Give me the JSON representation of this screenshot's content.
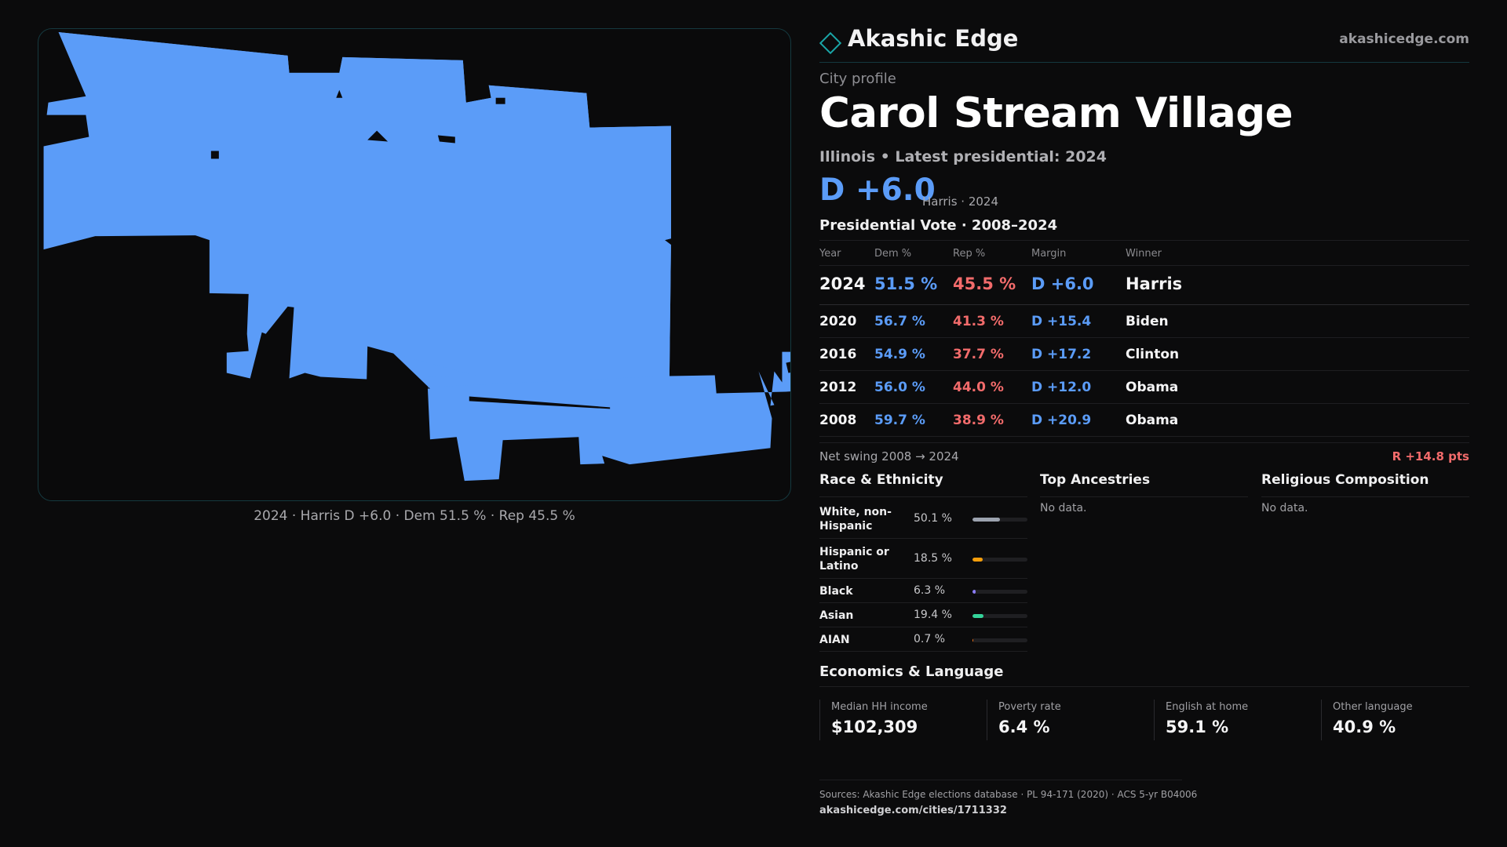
{
  "brand": {
    "name": "Akashic Edge",
    "site": "akashicedge.com",
    "accent": "#1aa6a8"
  },
  "profile": {
    "kicker": "City profile",
    "city": "Carol Stream Village",
    "subtitle": "Illinois • Latest presidential: 2024",
    "headline_margin": "D +6.0",
    "headline_note": "Harris · 2024"
  },
  "map": {
    "fill_color": "#5b9cf8",
    "caption": "2024 · Harris D +6.0 · Dem 51.5 % · Rep 45.5 %"
  },
  "vote": {
    "title": "Presidential Vote · 2008–2024",
    "headers": {
      "year": "Year",
      "dem": "Dem %",
      "rep": "Rep %",
      "margin": "Margin",
      "winner": "Winner"
    },
    "rows": [
      {
        "year": "2024",
        "dem": "51.5 %",
        "rep": "45.5 %",
        "margin": "D +6.0",
        "winner": "Harris"
      },
      {
        "year": "2020",
        "dem": "56.7 %",
        "rep": "41.3 %",
        "margin": "D +15.4",
        "winner": "Biden"
      },
      {
        "year": "2016",
        "dem": "54.9 %",
        "rep": "37.7 %",
        "margin": "D +17.2",
        "winner": "Clinton"
      },
      {
        "year": "2012",
        "dem": "56.0 %",
        "rep": "44.0 %",
        "margin": "D +12.0",
        "winner": "Obama"
      },
      {
        "year": "2008",
        "dem": "59.7 %",
        "rep": "38.9 %",
        "margin": "D +20.9",
        "winner": "Obama"
      }
    ],
    "swing_label": "Net swing 2008 → 2024",
    "swing_value": "R +14.8 pts"
  },
  "race": {
    "title": "Race & Ethnicity",
    "items": [
      {
        "name": "White, non-Hispanic",
        "pct": "50.1 %",
        "share": 50.1,
        "color": "#9ca3af"
      },
      {
        "name": "Hispanic or Latino",
        "pct": "18.5 %",
        "share": 18.5,
        "color": "#f59e0b"
      },
      {
        "name": "Black",
        "pct": "6.3 %",
        "share": 6.3,
        "color": "#8b7cf6"
      },
      {
        "name": "Asian",
        "pct": "19.4 %",
        "share": 19.4,
        "color": "#34d399"
      },
      {
        "name": "AIAN",
        "pct": "0.7 %",
        "share": 0.7,
        "color": "#f97316"
      }
    ]
  },
  "ancestries": {
    "title": "Top Ancestries",
    "empty": "No data."
  },
  "religion": {
    "title": "Religious Composition",
    "empty": "No data."
  },
  "economics": {
    "title": "Economics & Language",
    "stats": [
      {
        "label": "Median HH income",
        "value": "$102,309"
      },
      {
        "label": "Poverty rate",
        "value": "6.4 %"
      },
      {
        "label": "English at home",
        "value": "59.1 %"
      },
      {
        "label": "Other language",
        "value": "40.9 %"
      }
    ]
  },
  "footer": {
    "sources": "Sources: Akashic Edge elections database · PL 94-171 (2020) · ACS 5-yr B04006",
    "url": "akashicedge.com/cities/1711332"
  }
}
